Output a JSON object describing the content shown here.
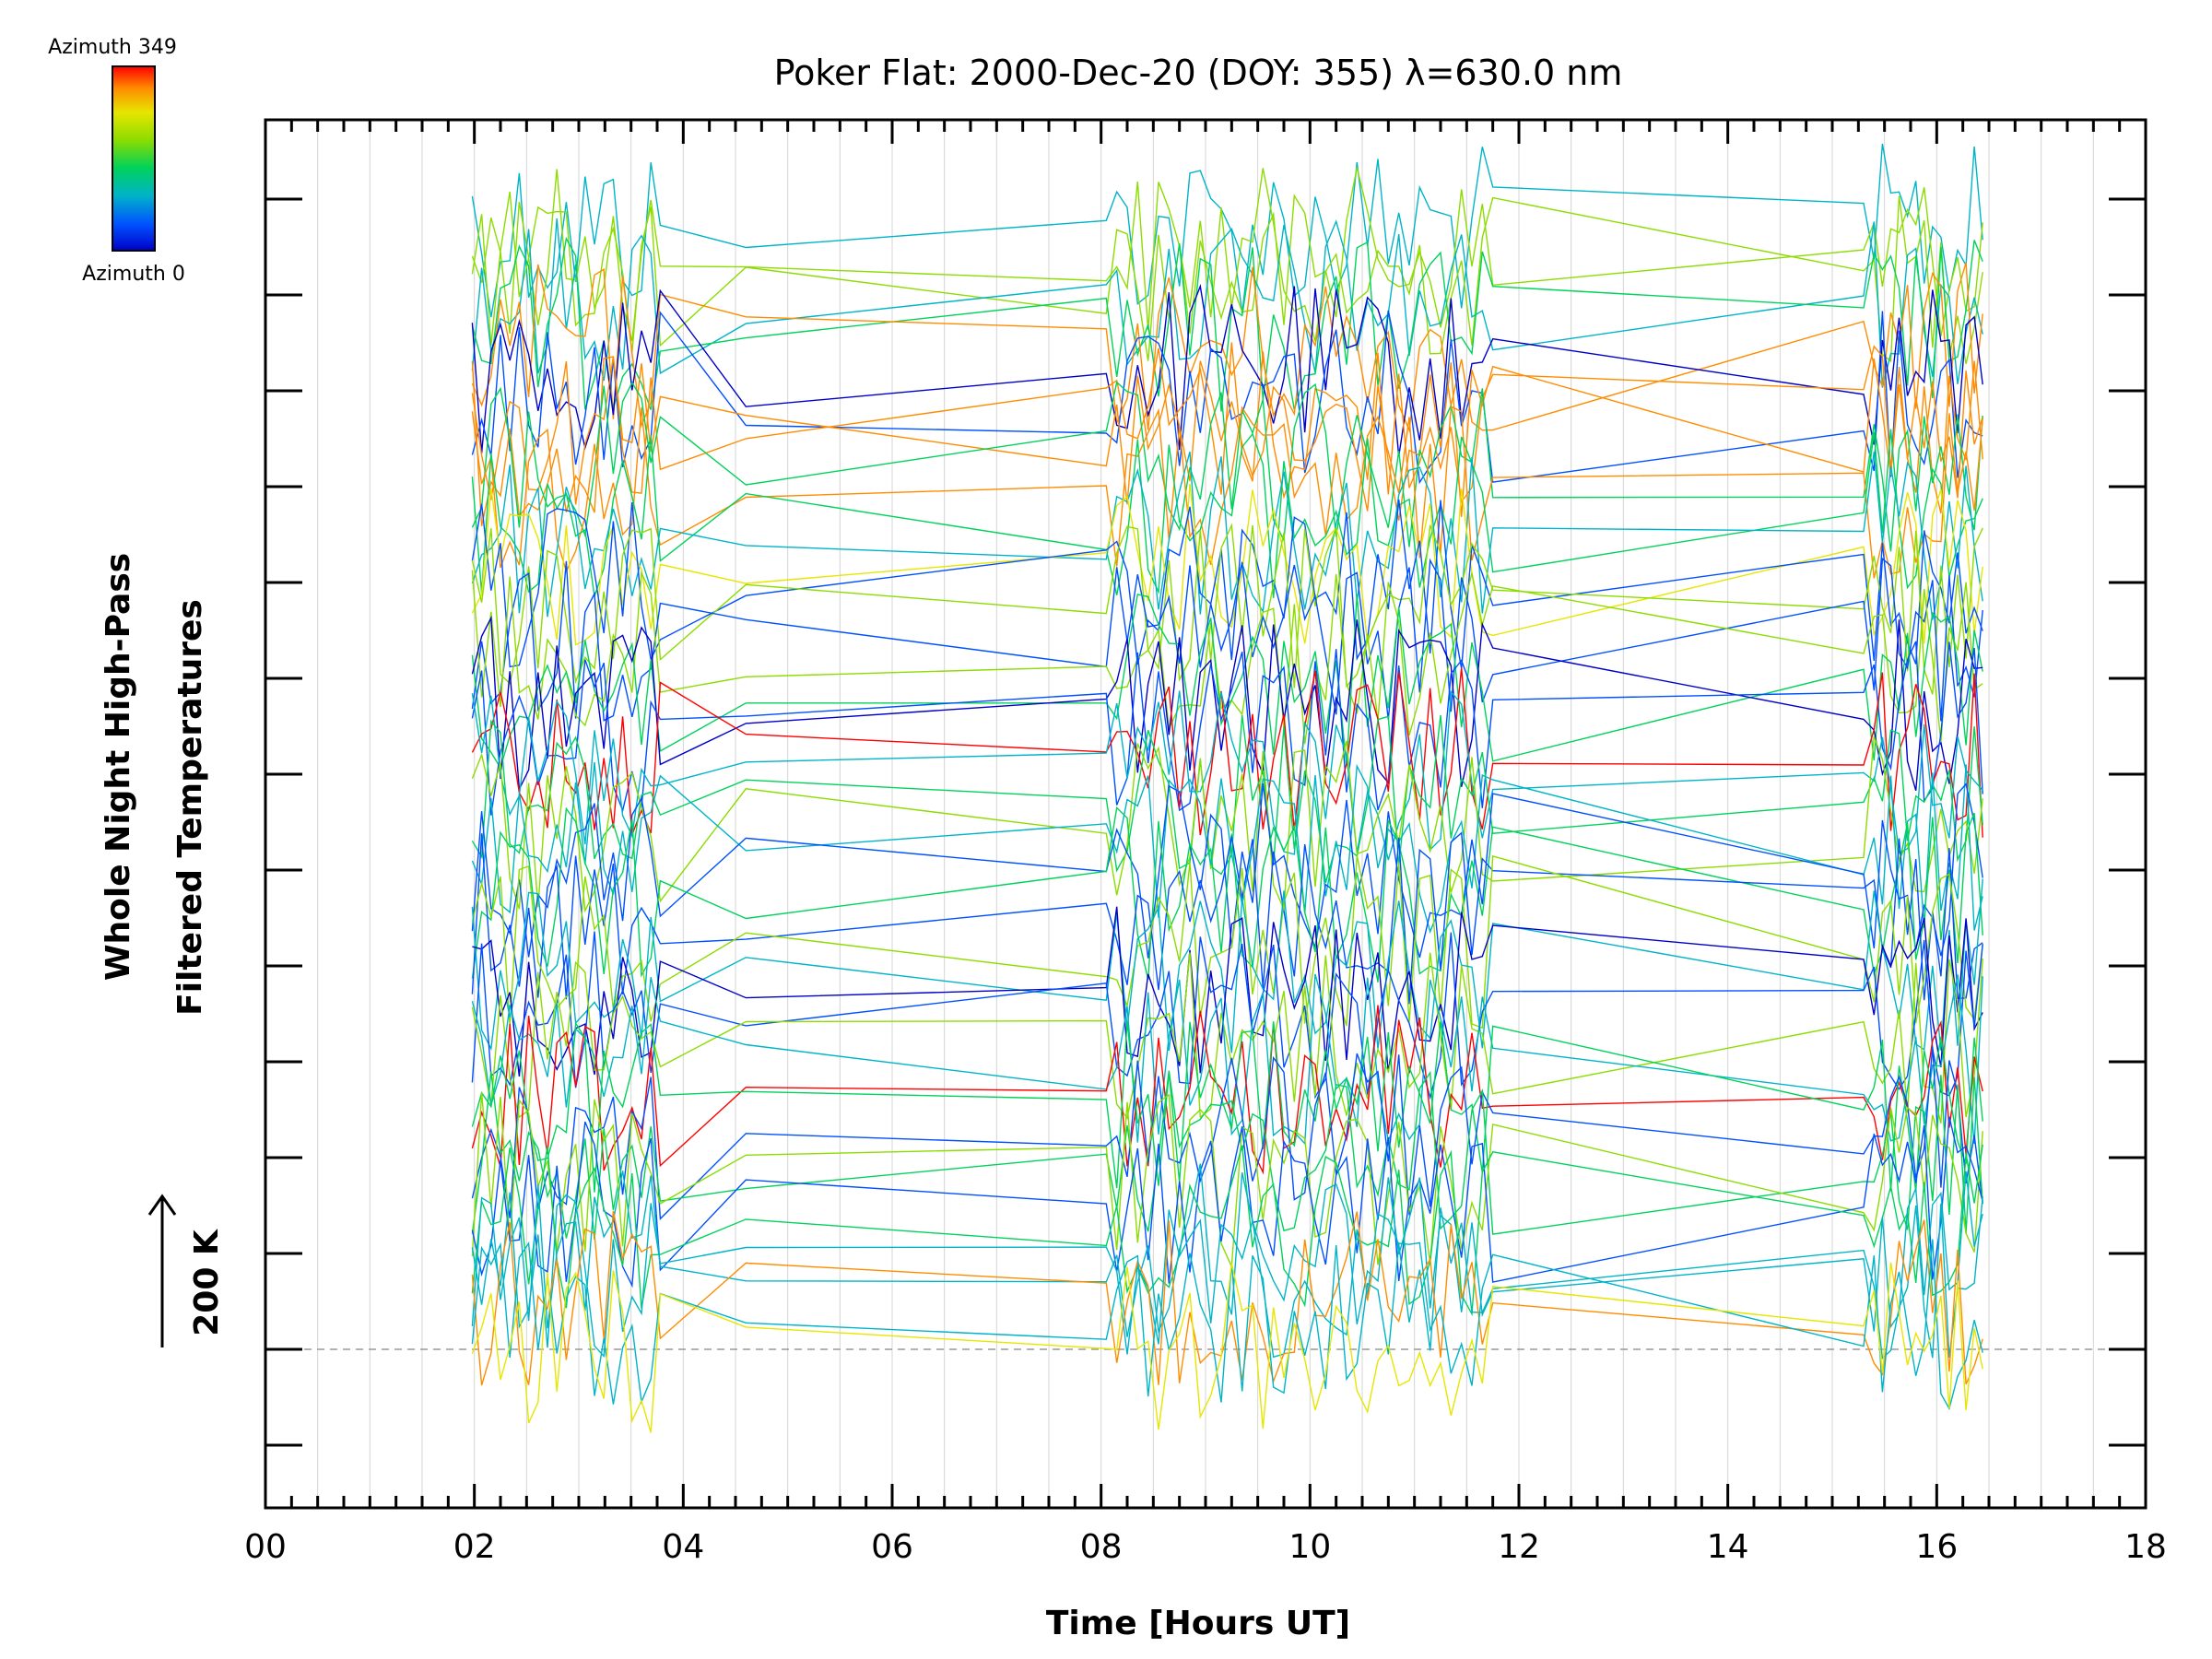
{
  "chart_data": {
    "type": "line",
    "title": "Poker Flat: 2000-Dec-20 (DOY: 355) λ=630.0 nm",
    "xlabel": "Time [Hours UT]",
    "ylabel_line1": "Whole Night High-Pass",
    "ylabel_line2": "Filtered Temperatures",
    "scale_label": "200 K",
    "xlim": [
      0,
      18
    ],
    "x_ticks": [
      "00",
      "02",
      "04",
      "06",
      "08",
      "10",
      "12",
      "14",
      "16",
      "18"
    ],
    "colorbar": {
      "top_label": "Azimuth 349",
      "bottom_label": "Azimuth 0",
      "colors": [
        "#ff0000",
        "#ff8c00",
        "#e6e600",
        "#8cdc00",
        "#00d25a",
        "#00b4c8",
        "#0050ff",
        "#0000c8"
      ]
    },
    "grid": true,
    "baseline_dashed": true,
    "series_count": 48,
    "time_clusters": [
      {
        "start": 1.98,
        "end": 3.8
      },
      {
        "start": 4.6,
        "end": 4.6
      },
      {
        "start": 8.05,
        "end": 11.75
      },
      {
        "start": 15.3,
        "end": 16.45
      }
    ]
  }
}
